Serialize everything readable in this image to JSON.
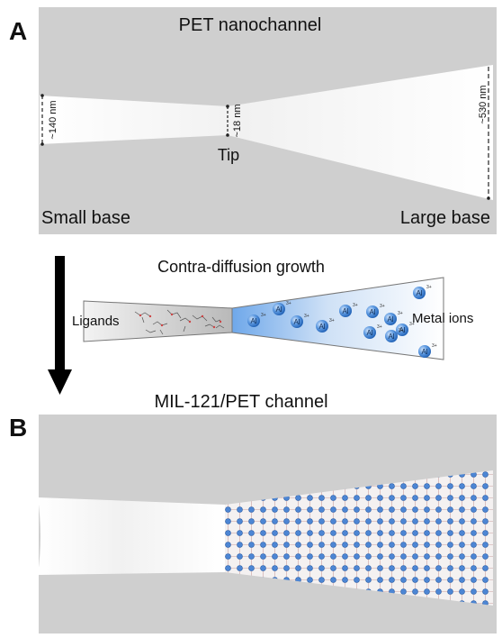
{
  "panel_a": {
    "letter": "A",
    "title": "PET nanochannel",
    "dim_small": "~140 nm",
    "dim_tip": "~18 nm",
    "dim_large": "~530 nm",
    "tip_label": "Tip",
    "small_base_label": "Small base",
    "large_base_label": "Large base"
  },
  "process": {
    "title": "Contra-diffusion growth",
    "left_label": "Ligands",
    "right_label": "Metal ions",
    "ion_symbol": "Al",
    "ion_charge": "3+"
  },
  "panel_b": {
    "letter": "B",
    "title": "MIL-121/PET channel"
  },
  "colors": {
    "membrane": "#cfcfcf",
    "channel": "#f6f6f6",
    "ion_fill": "#3a7fd6",
    "ion_glow": "#a9cdf5",
    "arrow": "#000000"
  }
}
